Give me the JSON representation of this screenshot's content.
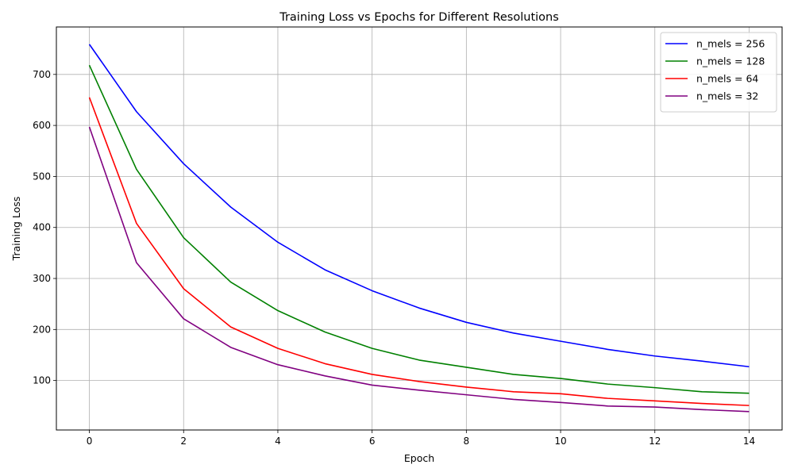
{
  "chart_data": {
    "type": "line",
    "title": "Training Loss vs Epochs for Different Resolutions",
    "xlabel": "Epoch",
    "ylabel": "Training Loss",
    "xlim": [
      -0.7,
      14.7
    ],
    "ylim": [
      3,
      793
    ],
    "xticks": [
      0,
      2,
      4,
      6,
      8,
      10,
      12,
      14
    ],
    "yticks": [
      100,
      200,
      300,
      400,
      500,
      600,
      700
    ],
    "grid": true,
    "legend_position": "top-right",
    "x": [
      0,
      1,
      2,
      3,
      4,
      5,
      6,
      7,
      8,
      9,
      10,
      11,
      12,
      13,
      14
    ],
    "series": [
      {
        "name": "n_mels = 256",
        "color": "#0000ff",
        "values": [
          759,
          627,
          525,
          440,
          371,
          317,
          276,
          242,
          214,
          193,
          177,
          161,
          148,
          138,
          127
        ]
      },
      {
        "name": "n_mels = 128",
        "color": "#008000",
        "values": [
          718,
          514,
          380,
          293,
          237,
          195,
          163,
          140,
          126,
          112,
          104,
          93,
          86,
          78,
          75
        ]
      },
      {
        "name": "n_mels = 64",
        "color": "#ff0000",
        "values": [
          655,
          408,
          280,
          205,
          163,
          133,
          112,
          98,
          87,
          78,
          74,
          65,
          60,
          55,
          51
        ]
      },
      {
        "name": "n_mels = 32",
        "color": "#800080",
        "values": [
          597,
          331,
          221,
          165,
          131,
          109,
          91,
          81,
          72,
          63,
          57,
          50,
          48,
          43,
          39
        ]
      }
    ]
  }
}
